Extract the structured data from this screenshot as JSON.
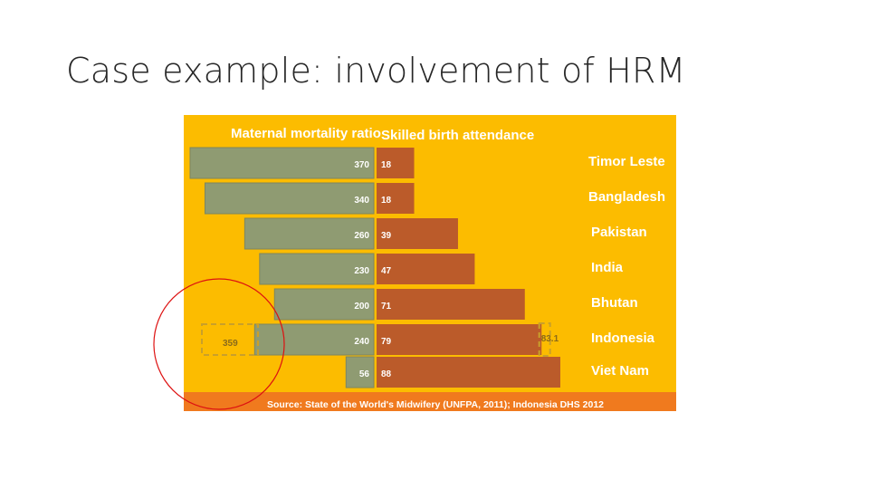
{
  "slide": {
    "title": "Case example: involvement of HRM"
  },
  "colors": {
    "panel": "#fcbc00",
    "mmr_bar": "#8f9b72",
    "sba_bar": "#bb5b2a",
    "source_band": "#f07a1e",
    "highlight_circle": "#dd1111"
  },
  "chart_data": {
    "type": "bar",
    "orientation": "horizontal",
    "layout": "back-to-back",
    "headers": {
      "left": "Maternal mortality ratio",
      "right": "Skilled birth attendance"
    },
    "categories": [
      "Timor Leste",
      "Bangladesh",
      "Pakistan",
      "India",
      "Bhutan",
      "Indonesia",
      "Viet Nam"
    ],
    "series": [
      {
        "name": "Maternal mortality ratio",
        "values": [
          370,
          340,
          260,
          230,
          200,
          240,
          56
        ],
        "labels": [
          "370",
          "340",
          "260",
          "230",
          "200",
          "240",
          "56"
        ]
      },
      {
        "name": "Skilled birth attendance",
        "values": [
          18,
          18,
          39,
          47,
          71,
          79,
          88
        ],
        "labels": [
          "18",
          "18",
          "39",
          "47",
          "71",
          "79",
          "88"
        ]
      }
    ],
    "alternate_values": {
      "category": "Indonesia",
      "maternal_mortality_ratio": 359,
      "maternal_mortality_ratio_label": "359",
      "skilled_birth_attendance": 83.1,
      "skilled_birth_attendance_label": "83.1"
    },
    "source": "Source:  State of the World's Midwifery (UNFPA, 2011); Indonesia DHS 2012"
  }
}
